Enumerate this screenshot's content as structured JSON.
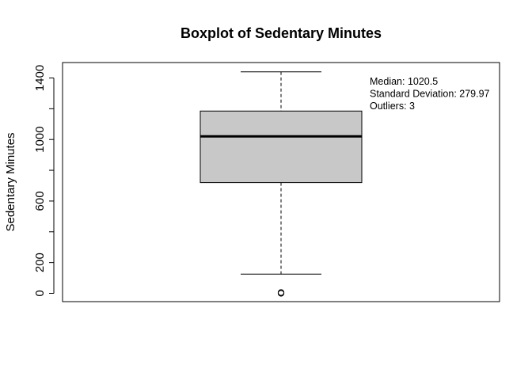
{
  "chart_data": {
    "type": "boxplot",
    "title": "Boxplot of Sedentary Minutes",
    "xlabel": "",
    "ylabel": "Sedentary Minutes",
    "ylim": [
      0,
      1440
    ],
    "y_ticks": [
      0,
      200,
      600,
      1000,
      1400
    ],
    "y_tick_marks": [
      0,
      200,
      400,
      600,
      800,
      1000,
      1200,
      1400
    ],
    "box": {
      "fill": "#c8c8c8",
      "stroke": "#000000",
      "whisker_low": 125,
      "q1": 720,
      "median": 1020.5,
      "q3": 1185,
      "whisker_high": 1440,
      "outliers": [
        0,
        2,
        5
      ]
    },
    "annotations": [
      "Median: 1020.5",
      "Standard Deviation: 279.97",
      "Outliers: 3"
    ]
  }
}
